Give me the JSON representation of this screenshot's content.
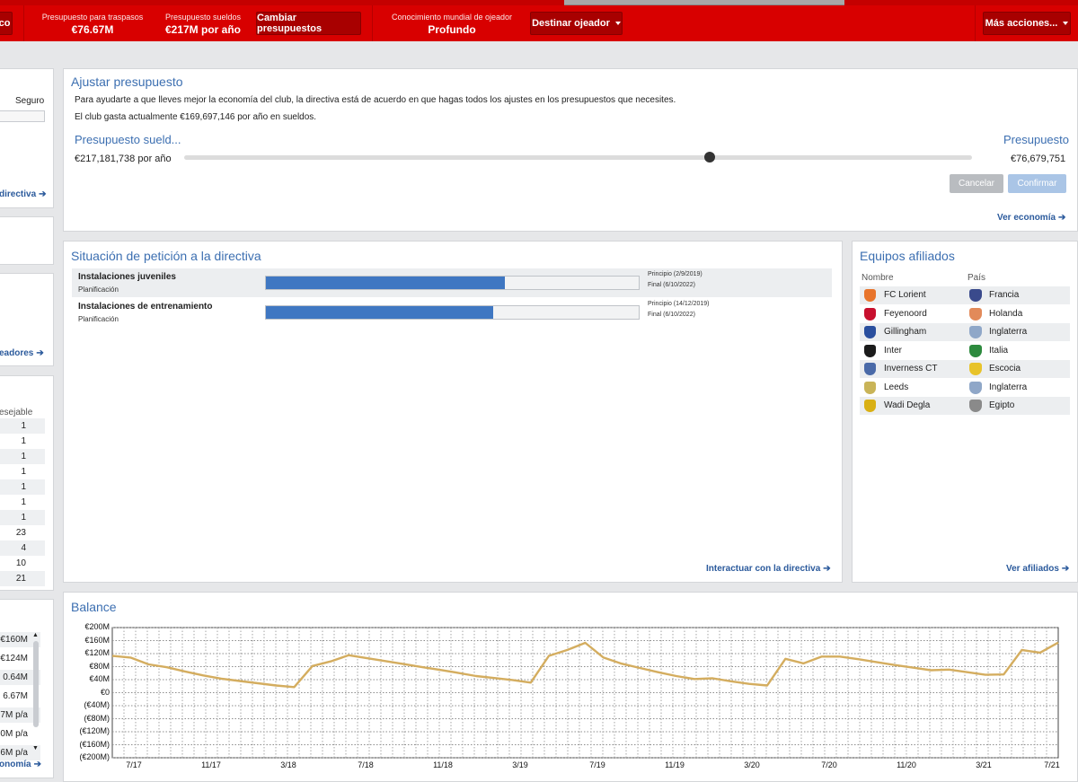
{
  "topbar": {
    "left_button_fragment": "co",
    "transfer_budget": {
      "label": "Presupuesto para traspasos",
      "value": "€76.67M"
    },
    "wage_budget": {
      "label": "Presupuesto sueldos",
      "value": "€217M por año"
    },
    "change_budgets_button": "Cambiar presupuestos",
    "scout_knowledge": {
      "label": "Conocimiento mundial de ojeador",
      "value": "Profundo"
    },
    "assign_scout_button": "Destinar ojeador",
    "more_actions_button": "Más acciones..."
  },
  "left_column": {
    "seguro_label": "Seguro",
    "directiva_link": "directiva",
    "jugadores_link": "eadores",
    "deseable_header": "esejable",
    "deseable_values": [
      "1",
      "1",
      "1",
      "1",
      "1",
      "1",
      "1",
      "23",
      "4",
      "10",
      "21"
    ],
    "finance_values": [
      "€160M",
      "€124M",
      "0.64M",
      "6.67M",
      "7M p/a",
      "0M p/a",
      "6M p/a"
    ],
    "economia_link": "onomía"
  },
  "budget": {
    "title": "Ajustar presupuesto",
    "intro": "Para ayudarte a que lleves mejor la economía del club, la directiva está de acuerdo en que hagas todos los ajustes en los presupuestos que necesites.",
    "current_wages": "El club gasta actualmente €169,697,146 por año en sueldos.",
    "wage_label": "Presupuesto sueld...",
    "wage_value": "€217,181,738 por año",
    "transfer_label": "Presupuesto",
    "transfer_value": "€76,679,751",
    "slider_fraction": 0.667,
    "cancel_button": "Cancelar",
    "confirm_button": "Confirmar",
    "finance_link": "Ver economía"
  },
  "requests": {
    "title": "Situación de petición a la directiva",
    "items": [
      {
        "name": "Instalaciones juveniles",
        "status": "Planificación",
        "start": "Principio (2/9/2019)",
        "end": "Final (6/10/2022)",
        "progress": 0.64
      },
      {
        "name": "Instalaciones de entrenamiento",
        "status": "Planificación",
        "start": "Principio (14/12/2019)",
        "end": "Final (6/10/2022)",
        "progress": 0.61
      }
    ],
    "link": "Interactuar con la directiva"
  },
  "affiliates": {
    "title": "Equipos afiliados",
    "col_name": "Nombre",
    "col_country": "País",
    "items": [
      {
        "club": "FC Lorient",
        "country": "Francia",
        "club_color": "#e8742b",
        "flag_color": "#3a4a8c"
      },
      {
        "club": "Feyenoord",
        "country": "Holanda",
        "club_color": "#c8102e",
        "flag_color": "#e28a5a"
      },
      {
        "club": "Gillingham",
        "country": "Inglaterra",
        "club_color": "#2a4f9e",
        "flag_color": "#8fa7c8"
      },
      {
        "club": "Inter",
        "country": "Italia",
        "club_color": "#1b1b1b",
        "flag_color": "#2d8a3e"
      },
      {
        "club": "Inverness CT",
        "country": "Escocia",
        "club_color": "#4a6aa8",
        "flag_color": "#e8c32a"
      },
      {
        "club": "Leeds",
        "country": "Inglaterra",
        "club_color": "#c9b458",
        "flag_color": "#8fa7c8"
      },
      {
        "club": "Wadi Degla",
        "country": "Egipto",
        "club_color": "#d9b014",
        "flag_color": "#8a8a8a"
      }
    ],
    "link": "Ver afiliados"
  },
  "balance": {
    "title": "Balance"
  },
  "chart_data": {
    "type": "line",
    "title": "Balance",
    "ylim": [
      -200,
      200
    ],
    "yticks": [
      "€200M",
      "€160M",
      "€120M",
      "€80M",
      "€40M",
      "€0",
      "(€40M)",
      "(€80M)",
      "(€120M)",
      "(€160M)",
      "(€200M)"
    ],
    "xlabels": [
      "7/17",
      "11/17",
      "3/18",
      "7/18",
      "11/18",
      "3/19",
      "7/19",
      "11/19",
      "3/20",
      "7/20",
      "11/20",
      "3/21",
      "7/21"
    ],
    "line_color": "#d4ad5f",
    "grid": true,
    "series": [
      {
        "values": [
          113,
          108,
          87,
          78,
          65,
          53,
          43,
          36,
          29,
          22,
          17,
          82,
          96,
          115,
          106,
          97,
          88,
          79,
          70,
          61,
          51,
          45,
          39,
          31,
          113,
          131,
          153,
          108,
          89,
          76,
          63,
          51,
          42,
          44,
          35,
          27,
          22,
          104,
          90,
          111,
          111,
          103,
          94,
          85,
          77,
          69,
          71,
          63,
          55,
          56,
          131,
          123,
          154
        ]
      }
    ]
  }
}
